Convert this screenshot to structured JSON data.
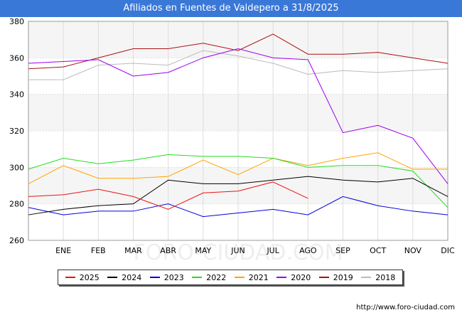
{
  "header": {
    "title": "Afiliados en Fuentes de Valdepero a 31/8/2025"
  },
  "footer": {
    "url": "http://www.foro-ciudad.com"
  },
  "watermark": "FORO-CIUDAD.COM",
  "chart_data": {
    "type": "line",
    "title": "Afiliados en Fuentes de Valdepero a 31/8/2025",
    "xlabel": "",
    "ylabel": "",
    "ylim": [
      260,
      380
    ],
    "yticks": [
      260,
      280,
      300,
      320,
      340,
      360,
      380
    ],
    "categories": [
      "",
      "ENE",
      "FEB",
      "MAR",
      "ABR",
      "MAY",
      "JUN",
      "JUL",
      "AGO",
      "SEP",
      "OCT",
      "NOV",
      "DIC"
    ],
    "grid": true,
    "legend_position": "bottom",
    "series": [
      {
        "name": "2025",
        "color": "#ee1111",
        "values": [
          284,
          285,
          288,
          284,
          277,
          286,
          287,
          292,
          283,
          null,
          null,
          null,
          null
        ]
      },
      {
        "name": "2024",
        "color": "#000000",
        "values": [
          274,
          277,
          279,
          280,
          293,
          291,
          291,
          293,
          295,
          293,
          292,
          294,
          284
        ]
      },
      {
        "name": "2023",
        "color": "#0000dd",
        "values": [
          278,
          274,
          276,
          276,
          280,
          273,
          275,
          277,
          274,
          284,
          279,
          276,
          274
        ]
      },
      {
        "name": "2022",
        "color": "#22dd22",
        "values": [
          299,
          305,
          302,
          304,
          307,
          306,
          306,
          305,
          300,
          301,
          301,
          298,
          278
        ]
      },
      {
        "name": "2021",
        "color": "#ffa500",
        "values": [
          291,
          301,
          294,
          294,
          295,
          304,
          296,
          305,
          301,
          305,
          308,
          299,
          299
        ]
      },
      {
        "name": "2020",
        "color": "#9900ee",
        "values": [
          357,
          358,
          359,
          350,
          352,
          360,
          365,
          360,
          359,
          319,
          323,
          316,
          291
        ]
      },
      {
        "name": "2019",
        "color": "#aa1111",
        "values": [
          354,
          355,
          360,
          365,
          365,
          368,
          364,
          373,
          362,
          362,
          363,
          360,
          357
        ]
      },
      {
        "name": "2018",
        "color": "#bbbbbb",
        "values": [
          348,
          348,
          356,
          357,
          356,
          364,
          361,
          357,
          351,
          353,
          352,
          353,
          354
        ]
      }
    ]
  }
}
